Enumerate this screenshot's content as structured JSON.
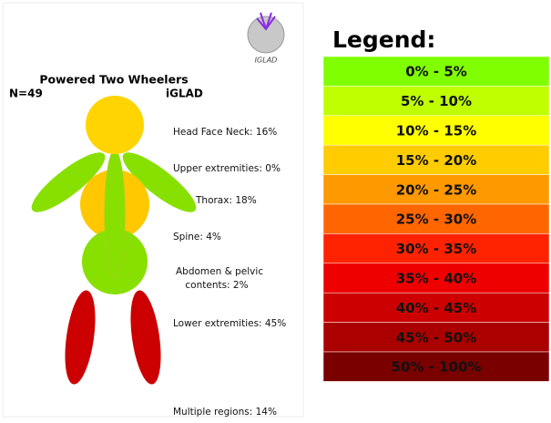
{
  "header": {
    "title": "Powered Two Wheelers",
    "sample": "N=49",
    "source": "iGLAD",
    "logo_text": "IGLAD"
  },
  "body_labels": [
    "Head Face Neck: 16%",
    "Upper extremities: 0%",
    "Thorax: 18%",
    "Spine: 4%",
    "Abdomen & pelvic",
    "contents: 2%",
    "Lower extremities: 45%",
    "Multiple regions: 14%"
  ],
  "legend": {
    "title": "Legend:",
    "items": [
      {
        "label": "0% - 5%",
        "color": "#80ff00"
      },
      {
        "label": "5% - 10%",
        "color": "#c0ff00"
      },
      {
        "label": "10% - 15%",
        "color": "#ffff00"
      },
      {
        "label": "15% - 20%",
        "color": "#ffcc00"
      },
      {
        "label": "20% - 25%",
        "color": "#ff9900"
      },
      {
        "label": "25% - 30%",
        "color": "#ff6600"
      },
      {
        "label": "30% - 35%",
        "color": "#ff2200"
      },
      {
        "label": "35% - 40%",
        "color": "#ee0000"
      },
      {
        "label": "40% - 45%",
        "color": "#cc0000"
      },
      {
        "label": "45% - 50%",
        "color": "#aa0000"
      },
      {
        "label": "50% - 100%",
        "color": "#7a0000"
      }
    ]
  }
}
